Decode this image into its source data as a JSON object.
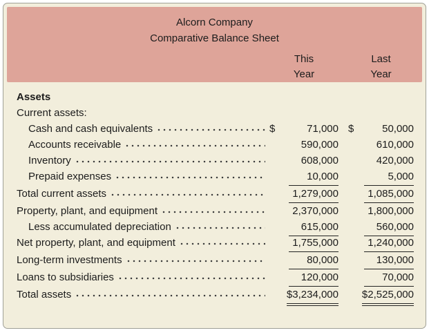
{
  "colors": {
    "header_band": "#dea499",
    "card_background": "#f2eedc"
  },
  "header": {
    "company": "Alcorn Company",
    "subtitle": "Comparative Balance Sheet",
    "col_this_line1": "This",
    "col_this_line2": "Year",
    "col_last_line1": "Last",
    "col_last_line2": "Year"
  },
  "rows": [
    {
      "label": "Assets"
    },
    {
      "label": "Current assets:"
    },
    {
      "label": "Cash and cash equivalents",
      "currency_this": "$",
      "this_year": "71,000",
      "currency_last": "$",
      "last_year": "50,000"
    },
    {
      "label": "Accounts receivable",
      "this_year": "590,000",
      "last_year": "610,000"
    },
    {
      "label": "Inventory",
      "this_year": "608,000",
      "last_year": "420,000"
    },
    {
      "label": "Prepaid expenses",
      "this_year": "10,000",
      "last_year": "5,000"
    },
    {
      "label": "Total current assets",
      "this_year": "1,279,000",
      "last_year": "1,085,000"
    },
    {
      "label": "Property, plant, and equipment",
      "this_year": "2,370,000",
      "last_year": "1,800,000"
    },
    {
      "label": "Less accumulated depreciation",
      "this_year": "615,000",
      "last_year": "560,000"
    },
    {
      "label": "Net property, plant, and equipment",
      "this_year": "1,755,000",
      "last_year": "1,240,000"
    },
    {
      "label": "Long-term investments",
      "this_year": "80,000",
      "last_year": "130,000"
    },
    {
      "label": "Loans to subsidiaries",
      "this_year": "120,000",
      "last_year": "70,000"
    },
    {
      "label": "Total assets",
      "this_year": "$3,234,000",
      "last_year": "$2,525,000"
    }
  ]
}
